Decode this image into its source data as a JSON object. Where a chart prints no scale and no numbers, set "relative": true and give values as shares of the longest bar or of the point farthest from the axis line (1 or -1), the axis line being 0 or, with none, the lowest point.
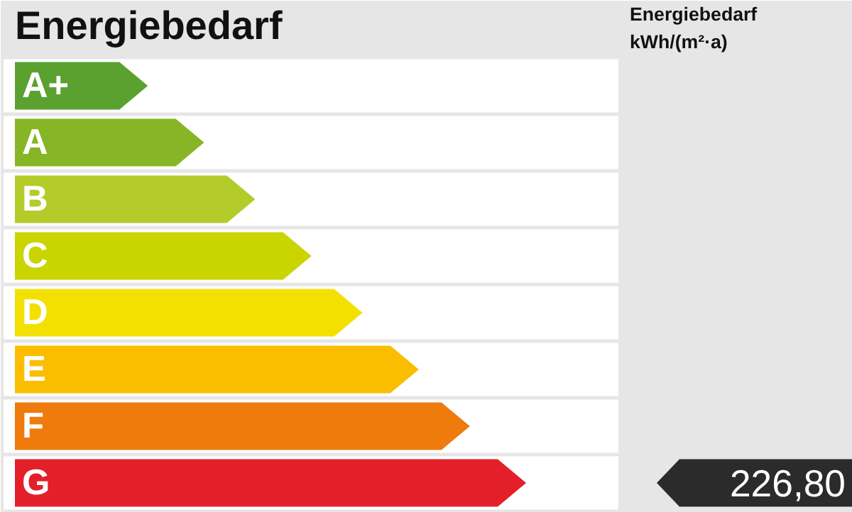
{
  "chart_data": {
    "type": "bar",
    "orientation": "horizontal",
    "relative": true,
    "title": "Energiebedarf",
    "categories": [
      "A+",
      "A",
      "B",
      "C",
      "D",
      "E",
      "F",
      "G"
    ],
    "values": [
      0.26,
      0.37,
      0.47,
      0.58,
      0.68,
      0.79,
      0.89,
      1
    ],
    "colors": [
      "#5aa12f",
      "#86b525",
      "#b4cc2a",
      "#cad400",
      "#f2e100",
      "#fbbd00",
      "#ee7b0c",
      "#e3202a"
    ],
    "annotations": [
      "Energiebedarf kWh/(m²·a)",
      "226,80"
    ]
  }
}
